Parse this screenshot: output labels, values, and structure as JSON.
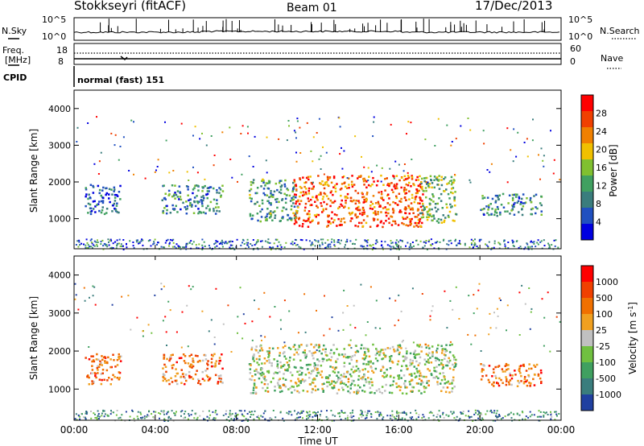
{
  "header": {
    "station": "Stokkseyri (fitACF)",
    "beam": "Beam 01",
    "date": "17/Dec/2013"
  },
  "status_panel": {
    "nsky_label": "N.Sky",
    "nsky_ticks": [
      "10^5",
      "10^0"
    ],
    "nsearch_label": "N.Search",
    "nsearch_ticks": [
      "10^5",
      "10^0"
    ],
    "freq_label": "Freq.",
    "freq_unit": "[MHz]",
    "freq_ticks": [
      "18",
      "8"
    ],
    "nave_label": "Nave",
    "nave_ticks": [
      "60",
      "0"
    ],
    "cpid_label": "CPID",
    "cpid_value": "normal (fast) 151"
  },
  "chart_data": [
    {
      "type": "heatmap",
      "name": "power",
      "ylabel": "Slant Range [km]",
      "ylim": [
        180,
        4500
      ],
      "yticks": [
        "1000",
        "2000",
        "3000",
        "4000"
      ],
      "colorbar_label": "Power [dB]",
      "colorbar_ticks": [
        "28",
        "24",
        "20",
        "16",
        "12",
        "8",
        "4"
      ],
      "colorbar_colors": [
        "#0000e0",
        "#2050c0",
        "#3a7d7d",
        "#40a060",
        "#80c030",
        "#f0c000",
        "#f08000",
        "#f04000",
        "#ff0000"
      ],
      "scatter_regions": [
        {
          "t0": 0.5,
          "t1": 2.3,
          "r0": 1150,
          "r1": 1950,
          "level": 0.2
        },
        {
          "t0": 4.3,
          "t1": 7.3,
          "r0": 1150,
          "r1": 1950,
          "level": 0.3
        },
        {
          "t0": 8.6,
          "t1": 11.0,
          "r0": 950,
          "r1": 2100,
          "level": 0.35
        },
        {
          "t0": 10.8,
          "t1": 17.2,
          "r0": 800,
          "r1": 2200,
          "level": 0.8
        },
        {
          "t0": 17.0,
          "t1": 18.8,
          "r0": 900,
          "r1": 2200,
          "level": 0.45
        },
        {
          "t0": 20.0,
          "t1": 23.0,
          "r0": 1100,
          "r1": 1700,
          "level": 0.3
        }
      ]
    },
    {
      "type": "heatmap",
      "name": "velocity",
      "xlabel": "Time UT",
      "ylabel": "Slant Range [km]",
      "ylim": [
        180,
        4500
      ],
      "xlim": [
        0,
        24
      ],
      "xticks": [
        "00:00",
        "04:00",
        "08:00",
        "12:00",
        "16:00",
        "20:00",
        "00:00"
      ],
      "yticks": [
        "1000",
        "2000",
        "3000",
        "4000"
      ],
      "colorbar_label": "Velocity [m s^-1]",
      "colorbar_ticks": [
        "1000",
        "500",
        "100",
        "25",
        "-25",
        "-100",
        "-500",
        "-1000"
      ],
      "colorbar_colors": [
        "#2040a0",
        "#3a7d7d",
        "#40a060",
        "#70c040",
        "#c0c0c0",
        "#f0a020",
        "#f07000",
        "#f04000",
        "#ff0000"
      ],
      "scatter_regions": [
        {
          "t0": 0.5,
          "t1": 2.3,
          "r0": 1150,
          "r1": 1950,
          "level": 0.72
        },
        {
          "t0": 4.3,
          "t1": 7.3,
          "r0": 1150,
          "r1": 1950,
          "level": 0.7
        },
        {
          "t0": 8.6,
          "t1": 18.8,
          "r0": 900,
          "r1": 2200,
          "level": 0.45
        },
        {
          "t0": 20.0,
          "t1": 23.0,
          "r0": 1100,
          "r1": 1700,
          "level": 0.75
        }
      ]
    }
  ]
}
